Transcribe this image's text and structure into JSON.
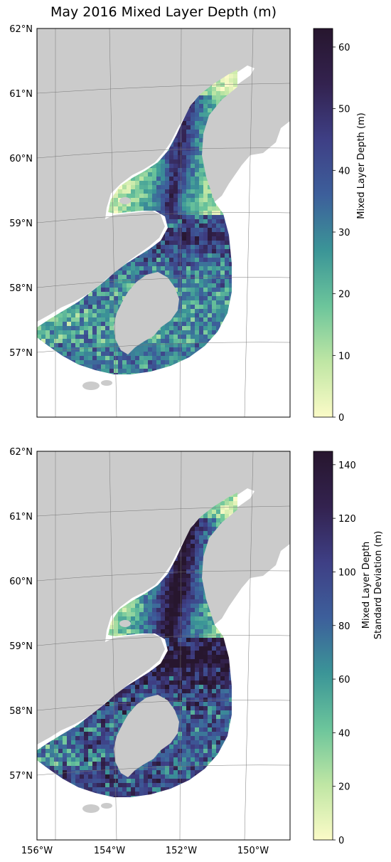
{
  "title": "May 2016 Mixed Layer Depth (m)",
  "colors": {
    "land": "#cbcbcb",
    "ocean_background": "#ffffff",
    "gridline": "#777777",
    "colormap": [
      "#fbfbc7",
      "#bfe6a4",
      "#6cc59b",
      "#3b9597",
      "#3d5f9b",
      "#3e3f85",
      "#33224f",
      "#27162e"
    ]
  },
  "map": {
    "lat_labels": [
      "62°N",
      "61°N",
      "60°N",
      "59°N",
      "58°N",
      "57°N"
    ],
    "lon_labels": [
      "156°W",
      "154°W",
      "152°W",
      "150°W"
    ]
  },
  "panels": [
    {
      "id": "mld",
      "colorbar_label": "Mixed Layer Depth (m)",
      "colorbar_min": 0,
      "colorbar_max": 63,
      "colorbar_ticks": [
        "0",
        "10",
        "20",
        "30",
        "40",
        "50",
        "60"
      ],
      "colorbar_tick_values": [
        0,
        10,
        20,
        30,
        40,
        50,
        60
      ],
      "show_lon_labels": false
    },
    {
      "id": "mld-std",
      "colorbar_label_lines": [
        "Mixed Layer Depth",
        "Standard Deviation (m)"
      ],
      "colorbar_min": 0,
      "colorbar_max": 145,
      "colorbar_ticks": [
        "0",
        "20",
        "40",
        "60",
        "80",
        "100",
        "120",
        "140"
      ],
      "colorbar_tick_values": [
        0,
        20,
        40,
        60,
        80,
        100,
        120,
        140
      ],
      "show_lon_labels": true
    }
  ]
}
